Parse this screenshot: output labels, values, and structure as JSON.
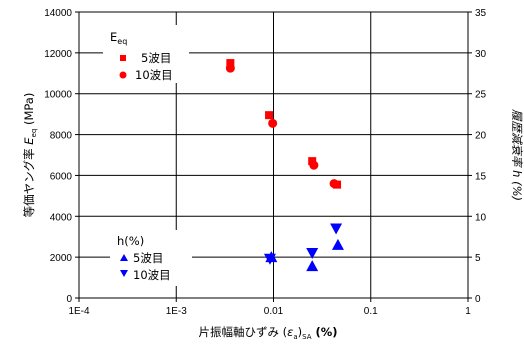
{
  "chart_data": {
    "type": "scatter",
    "xscale": "log",
    "xlim": [
      0.0001,
      1
    ],
    "ylim": [
      0,
      14000
    ],
    "y2lim": [
      0,
      35
    ],
    "x_ticks": [
      "1E-4",
      "1E-3",
      "0.01",
      "0.1",
      "1"
    ],
    "y_ticks": [
      "0",
      "2000",
      "4000",
      "6000",
      "8000",
      "10000",
      "12000",
      "14000"
    ],
    "y2_ticks": [
      "0",
      "5",
      "10",
      "15",
      "20",
      "25",
      "30",
      "35"
    ],
    "xlabel": {
      "main": "片振幅軸ひずみ (",
      "sym": "ε",
      "sub1": "a",
      "close": ")",
      "sub2": "SA",
      "unit": " (%)"
    },
    "ylabel": {
      "main": "等価ヤング率 ",
      "sym": "E",
      "sub": "eq",
      "unit": " (MPa)"
    },
    "y2label": {
      "main": "履歴減衰率 ",
      "sym": "h",
      "unit": " (%)"
    },
    "grid": true,
    "color": "#ff0000",
    "color_h": "#0000ff",
    "legends": [
      {
        "title_sym": "E",
        "title_sub": "eq",
        "entries": [
          {
            "marker": "square",
            "label": "5波目"
          },
          {
            "marker": "circle",
            "label": "10波目"
          }
        ]
      },
      {
        "title": "h(%)",
        "entries": [
          {
            "marker": "triangle-up",
            "label": "5波目"
          },
          {
            "marker": "triangle-down",
            "label": "10波目"
          }
        ]
      }
    ],
    "series": [
      {
        "name": "5波目",
        "axis": "left",
        "marker": "square",
        "points": [
          [
            0.0036,
            11500
          ],
          [
            0.009,
            8950
          ],
          [
            0.025,
            6700
          ],
          [
            0.045,
            5550
          ]
        ]
      },
      {
        "name": "10波目",
        "axis": "left",
        "marker": "circle",
        "points": [
          [
            0.0036,
            11250
          ],
          [
            0.0098,
            8550
          ],
          [
            0.026,
            6500
          ],
          [
            0.042,
            5600
          ]
        ]
      },
      {
        "name": "5波目",
        "axis": "right",
        "marker": "triangle-up",
        "points": [
          [
            0.0095,
            5.0
          ],
          [
            0.025,
            3.9
          ],
          [
            0.046,
            6.5
          ]
        ]
      },
      {
        "name": "10波目",
        "axis": "right",
        "marker": "triangle-down",
        "points": [
          [
            0.0092,
            4.8
          ],
          [
            0.025,
            5.5
          ],
          [
            0.044,
            8.5
          ]
        ]
      }
    ]
  }
}
